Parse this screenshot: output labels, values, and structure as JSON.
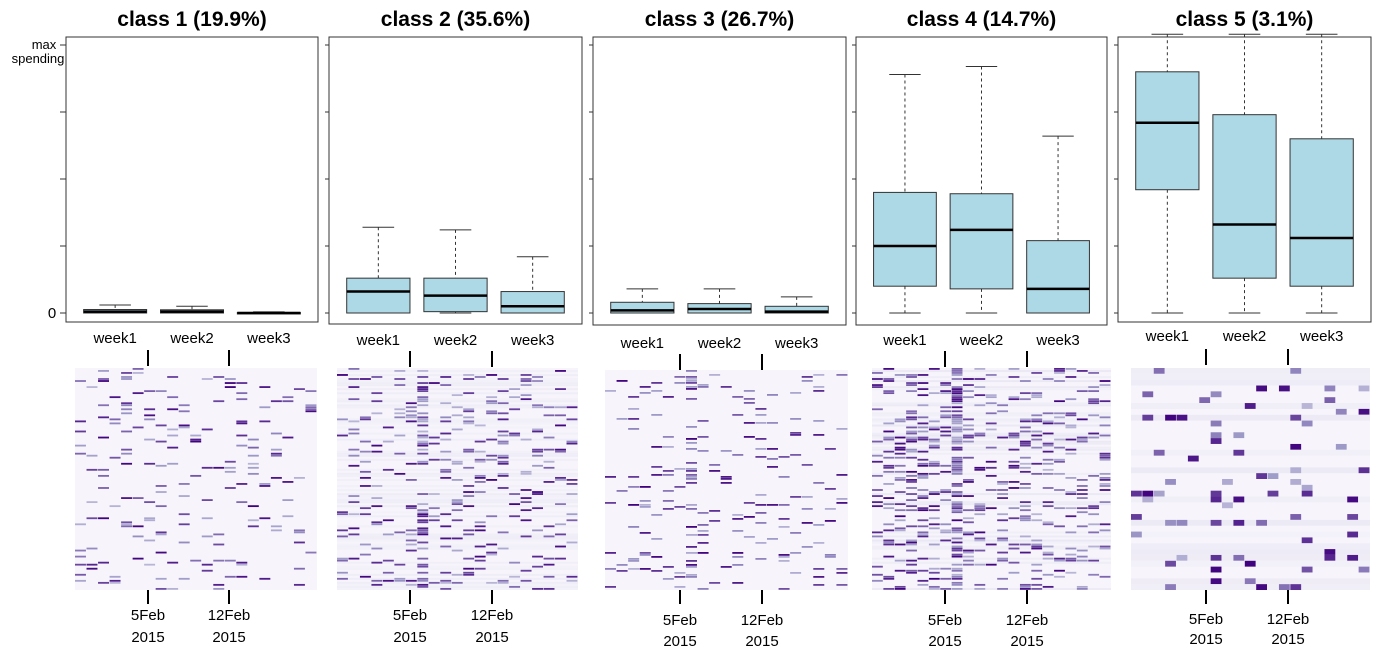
{
  "figure": {
    "y_axis_top_label": "max\nspending",
    "y_axis_zero_label": "0"
  },
  "colors": {
    "box_fill": "#add8e6",
    "heat_low": "#f7f5fb",
    "heat_mid": "#9e9ac8",
    "heat_high": "#3f007d"
  },
  "chart_data": [
    {
      "type": "box",
      "title": "class 1  (19.9%)",
      "categories": [
        "week1",
        "week2",
        "week3"
      ],
      "ylim": [
        0,
        1
      ],
      "boxes": [
        {
          "min": 0,
          "q1": 0.0,
          "median": 0.005,
          "q3": 0.013,
          "max": 0.03
        },
        {
          "min": 0,
          "q1": 0.0,
          "median": 0.005,
          "q3": 0.012,
          "max": 0.025
        },
        {
          "min": 0,
          "q1": 0.0,
          "median": 0.0,
          "q3": 0.002,
          "max": 0.004
        }
      ],
      "heatmap": {
        "x_ticks": [
          "5Feb\n2015",
          "12Feb\n2015"
        ],
        "density": 0.07,
        "bg_intensity": 0.0,
        "hot_cols": []
      }
    },
    {
      "type": "box",
      "title": "class 2  (35.6%)",
      "categories": [
        "week1",
        "week2",
        "week3"
      ],
      "ylim": [
        0,
        1
      ],
      "boxes": [
        {
          "min": 0,
          "q1": 0.0,
          "median": 0.08,
          "q3": 0.13,
          "max": 0.32
        },
        {
          "min": 0,
          "q1": 0.005,
          "median": 0.065,
          "q3": 0.13,
          "max": 0.31
        },
        {
          "min": 0,
          "q1": 0.0,
          "median": 0.025,
          "q3": 0.08,
          "max": 0.21
        }
      ],
      "heatmap": {
        "x_ticks": [
          "5Feb\n2015",
          "12Feb\n2015"
        ],
        "density": 0.14,
        "bg_intensity": 0.08,
        "hot_cols": [
          7
        ]
      }
    },
    {
      "type": "box",
      "title": "class 3  (26.7%)",
      "categories": [
        "week1",
        "week2",
        "week3"
      ],
      "ylim": [
        0,
        1
      ],
      "boxes": [
        {
          "min": 0,
          "q1": 0.0,
          "median": 0.01,
          "q3": 0.04,
          "max": 0.09
        },
        {
          "min": 0,
          "q1": 0.0,
          "median": 0.015,
          "q3": 0.035,
          "max": 0.09
        },
        {
          "min": 0,
          "q1": 0.0,
          "median": 0.005,
          "q3": 0.025,
          "max": 0.06
        }
      ],
      "heatmap": {
        "x_ticks": [
          "5Feb\n2015",
          "12Feb\n2015"
        ],
        "density": 0.08,
        "bg_intensity": 0.0,
        "hot_cols": [
          7
        ]
      }
    },
    {
      "type": "box",
      "title": "class 4  (14.7%)",
      "categories": [
        "week1",
        "week2",
        "week3"
      ],
      "ylim": [
        0,
        1
      ],
      "boxes": [
        {
          "min": 0,
          "q1": 0.1,
          "median": 0.25,
          "q3": 0.45,
          "max": 0.89
        },
        {
          "min": 0,
          "q1": 0.09,
          "median": 0.31,
          "q3": 0.445,
          "max": 0.92
        },
        {
          "min": 0,
          "q1": 0.0,
          "median": 0.09,
          "q3": 0.27,
          "max": 0.66
        }
      ],
      "heatmap": {
        "x_ticks": [
          "5Feb\n2015",
          "12Feb\n2015"
        ],
        "density": 0.2,
        "bg_intensity": 0.12,
        "hot_cols": [
          7
        ]
      }
    },
    {
      "type": "box",
      "title": "class 5  (3.1%)",
      "categories": [
        "week1",
        "week2",
        "week3"
      ],
      "ylim": [
        0,
        1
      ],
      "boxes": [
        {
          "min": 0,
          "q1": 0.46,
          "median": 0.71,
          "q3": 0.9,
          "max": 1.04
        },
        {
          "min": 0,
          "q1": 0.13,
          "median": 0.33,
          "q3": 0.74,
          "max": 1.04
        },
        {
          "min": 0,
          "q1": 0.1,
          "median": 0.28,
          "q3": 0.65,
          "max": 1.04
        }
      ],
      "heatmap": {
        "x_ticks": [
          "5Feb\n2015",
          "12Feb\n2015"
        ],
        "density": 0.09,
        "bg_intensity": 0.1,
        "hot_cols": [
          7
        ]
      }
    }
  ]
}
